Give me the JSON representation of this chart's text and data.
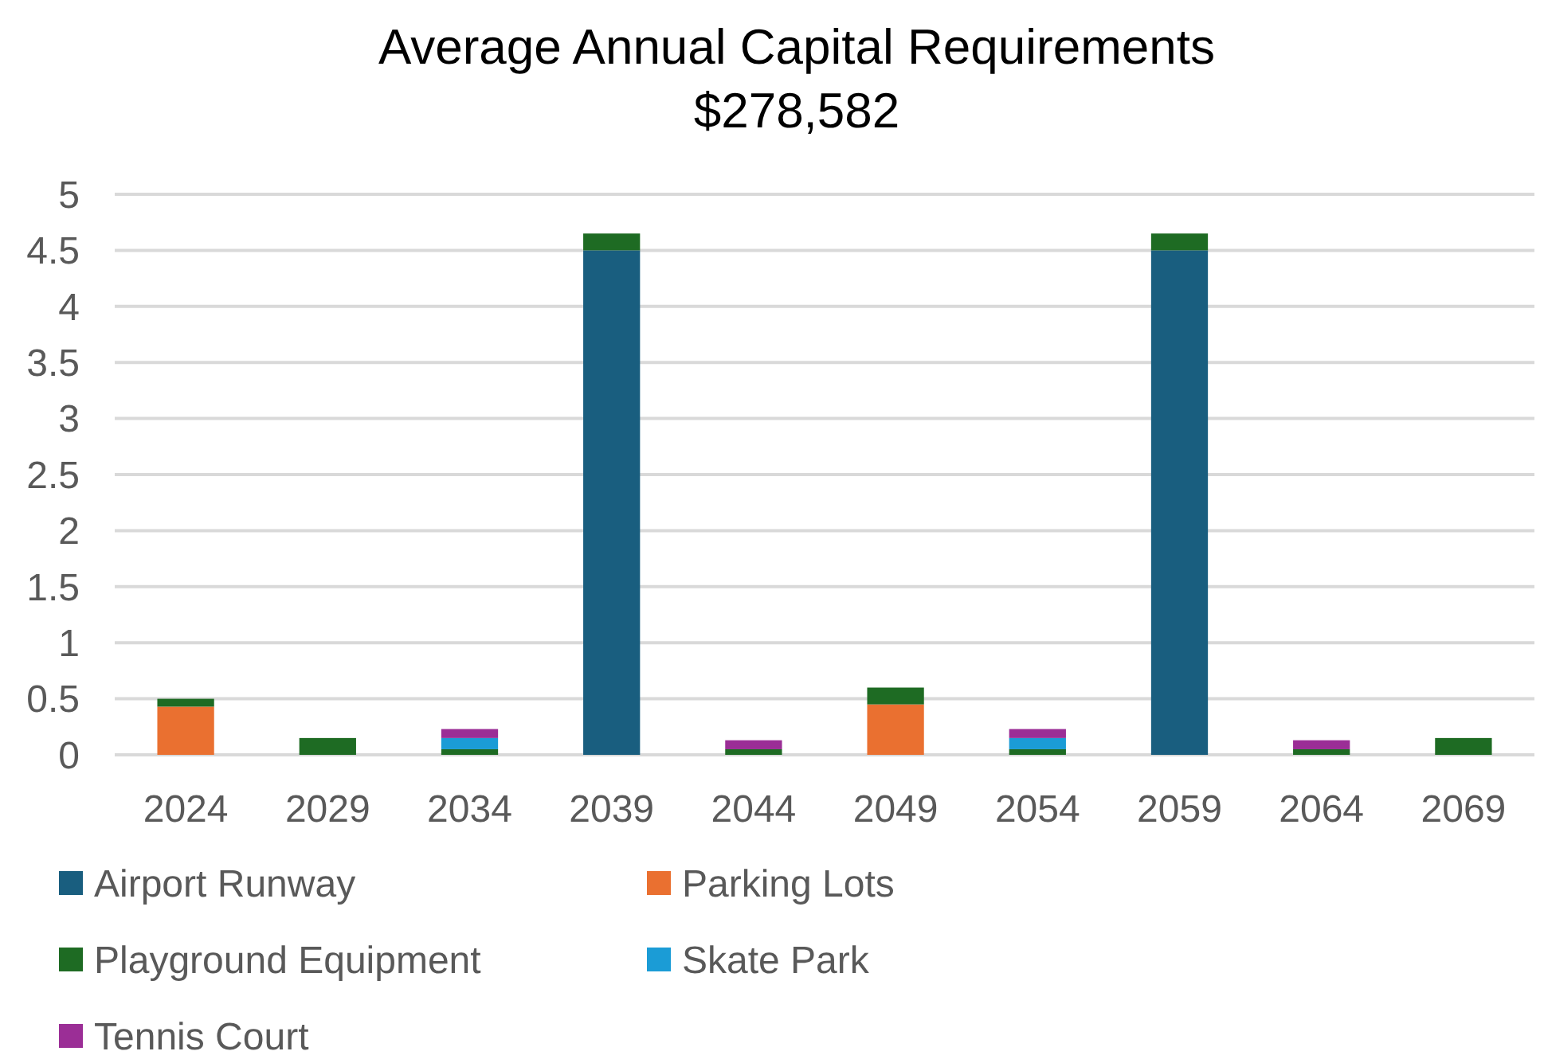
{
  "chart_data": {
    "type": "bar",
    "title": "Average Annual Capital Requirements",
    "subtitle": "$278,582",
    "categories": [
      "2024",
      "2029",
      "2034",
      "2039",
      "2044",
      "2049",
      "2054",
      "2059",
      "2064",
      "2069"
    ],
    "stacked": true,
    "series": [
      {
        "name": "Airport Runway",
        "color": "#195e7f",
        "values": [
          null,
          null,
          null,
          4.5,
          null,
          null,
          null,
          4.5,
          null,
          null
        ]
      },
      {
        "name": "Parking Lots",
        "color": "#ea7030",
        "values": [
          0.43,
          null,
          null,
          null,
          null,
          0.45,
          null,
          null,
          null,
          null
        ]
      },
      {
        "name": "Playground Equipment",
        "color": "#1e6b23",
        "values": [
          0.07,
          0.15,
          0.05,
          0.15,
          0.05,
          0.15,
          0.05,
          0.15,
          0.05,
          0.15
        ]
      },
      {
        "name": "Skate Park",
        "color": "#1b9cd6",
        "values": [
          null,
          null,
          0.1,
          null,
          null,
          null,
          0.1,
          null,
          null,
          null
        ]
      },
      {
        "name": "Tennis Court",
        "color": "#9b2e96",
        "values": [
          null,
          null,
          0.08,
          null,
          0.08,
          null,
          0.08,
          null,
          0.08,
          null
        ]
      }
    ],
    "ylim": [
      0,
      5
    ],
    "yticks": [
      0,
      0.5,
      1,
      1.5,
      2,
      2.5,
      3,
      3.5,
      4,
      4.5,
      5
    ],
    "grid": "y",
    "legend": "bottom"
  }
}
